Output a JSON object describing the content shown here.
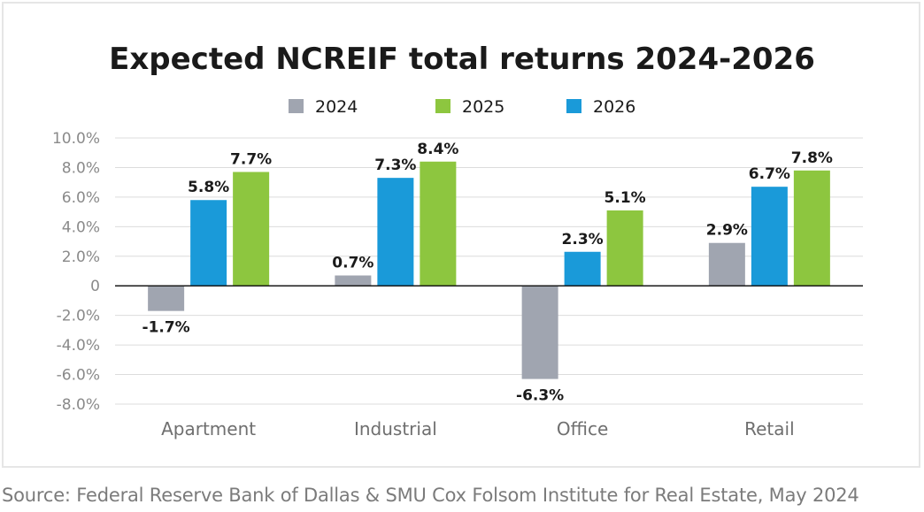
{
  "chart_data": {
    "type": "bar",
    "title": "Expected NCREIF total returns 2024-2026",
    "categories": [
      "Apartment",
      "Industrial",
      "Office",
      "Retail"
    ],
    "series": [
      {
        "name": "2024",
        "color": "#a0a5b0",
        "values": [
          -1.7,
          0.7,
          -6.3,
          2.9
        ]
      },
      {
        "name": "2025",
        "color": "#8dc63f",
        "values": [
          7.7,
          8.4,
          5.1,
          7.8
        ]
      },
      {
        "name": "2026",
        "color": "#1a9ad9",
        "values": [
          5.8,
          7.3,
          2.3,
          6.7
        ]
      }
    ],
    "bar_order": [
      "2024",
      "2026",
      "2025"
    ],
    "data_labels": [
      [
        "-1.7%",
        "5.8%",
        "7.7%"
      ],
      [
        "0.7%",
        "7.3%",
        "8.4%"
      ],
      [
        "-6.3%",
        "2.3%",
        "5.1%"
      ],
      [
        "2.9%",
        "6.7%",
        "7.8%"
      ]
    ],
    "ylim": [
      -8,
      10
    ],
    "yticks": [
      10,
      8,
      6,
      4,
      2,
      0,
      -2,
      -4,
      -6,
      -8
    ],
    "ytick_labels": [
      "10.0%",
      "8.0%",
      "6.0%",
      "4.0%",
      "2.0%",
      "0",
      "-2.0%",
      "-4.0%",
      "-6.0%",
      "-8.0%"
    ],
    "legend_position": "top-center",
    "grid": true,
    "xlabel": "",
    "ylabel": ""
  },
  "source": "Source: Federal Reserve Bank of Dallas & SMU Cox Folsom Institute for Real Estate, May 2024"
}
